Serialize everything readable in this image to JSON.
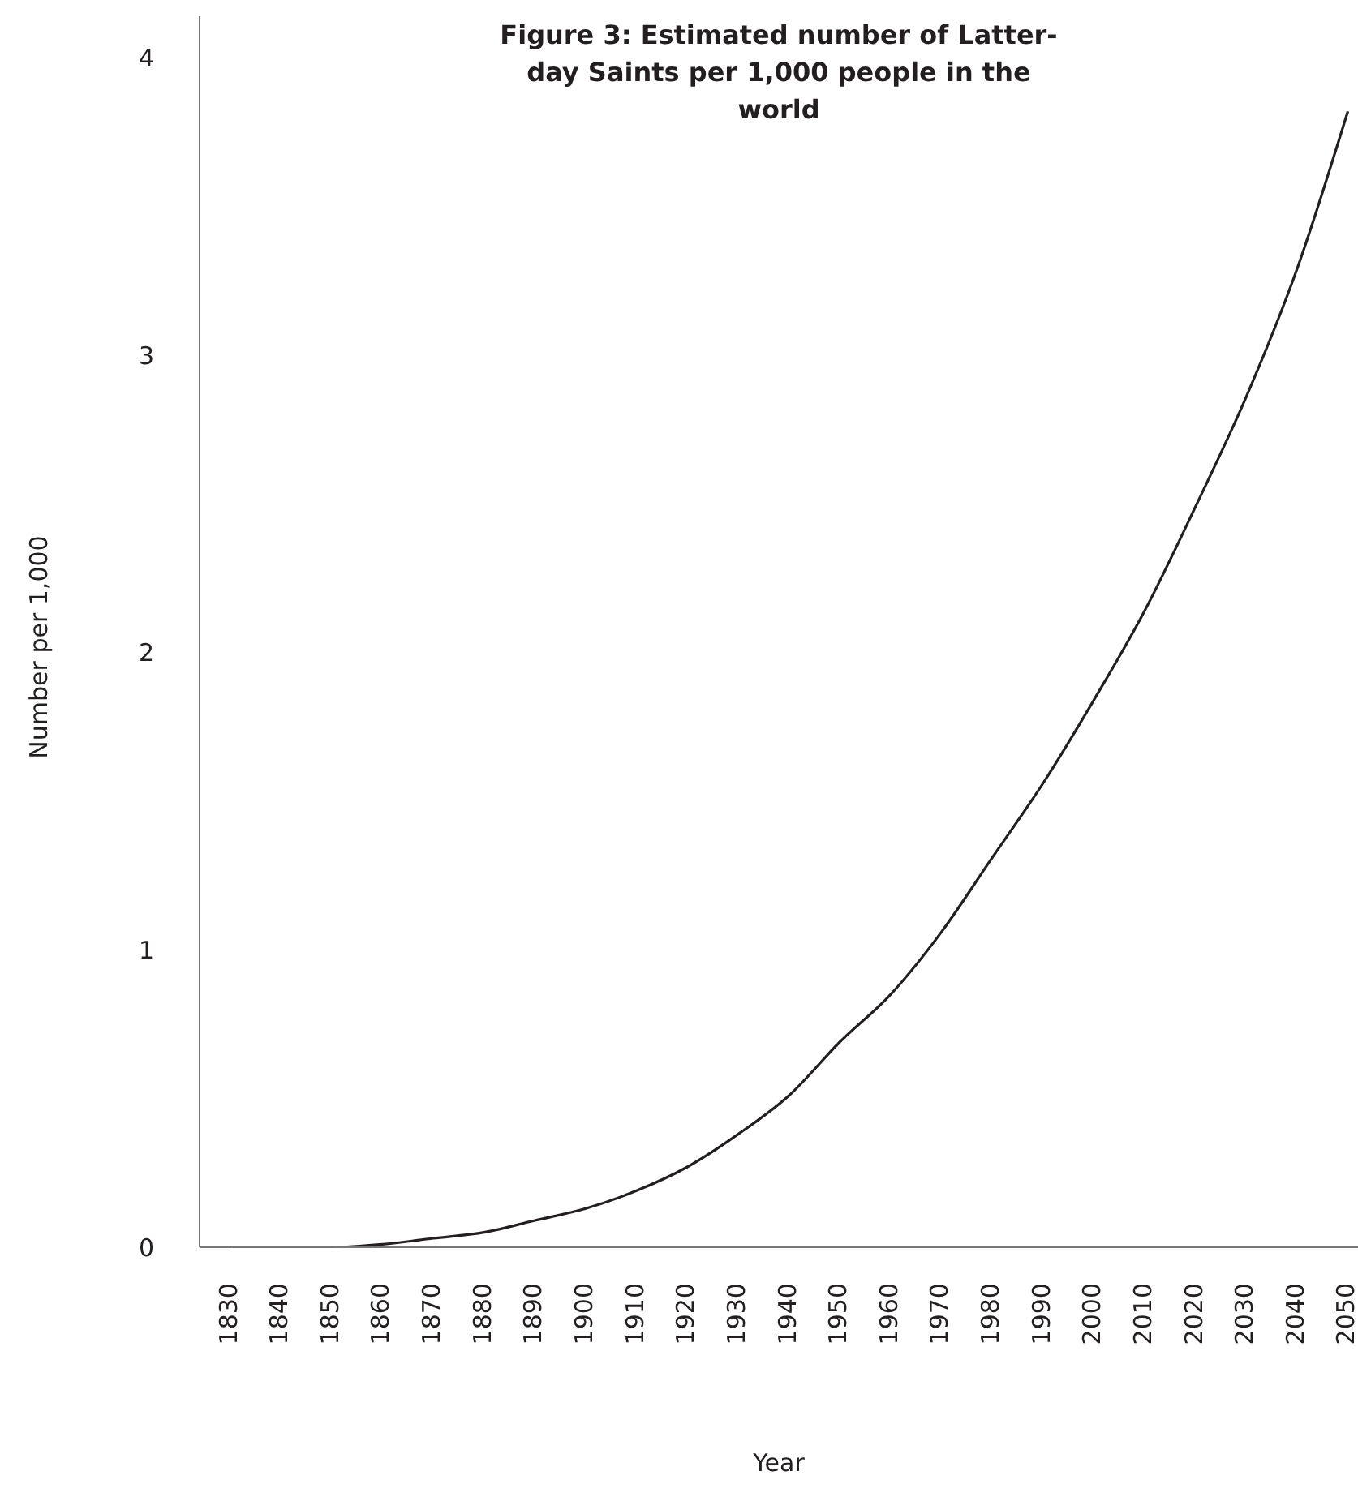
{
  "chart_data": {
    "type": "line",
    "title": "Figure 3: Estimated number of Latter-day Saints per 1,000 people in the world",
    "xlabel": "Year",
    "ylabel": "Number per 1,000",
    "x": [
      1830,
      1840,
      1850,
      1860,
      1870,
      1880,
      1890,
      1900,
      1910,
      1920,
      1930,
      1940,
      1950,
      1960,
      1970,
      1980,
      1990,
      2000,
      2010,
      2020,
      2030,
      2040,
      2050
    ],
    "series": [
      {
        "color": "#231f20",
        "values": [
          0,
          0,
          0,
          0.01,
          0.03,
          0.05,
          0.09,
          0.13,
          0.19,
          0.27,
          0.38,
          0.51,
          0.69,
          0.85,
          1.06,
          1.31,
          1.56,
          1.84,
          2.14,
          2.49,
          2.86,
          3.29,
          3.82
        ]
      }
    ],
    "xlim": [
      1824,
      2052
    ],
    "xticks": [
      1830,
      1840,
      1850,
      1860,
      1870,
      1880,
      1890,
      1900,
      1910,
      1920,
      1930,
      1940,
      1950,
      1960,
      1970,
      1980,
      1990,
      2000,
      2010,
      2020,
      2030,
      2040,
      2050
    ],
    "ylim": [
      0,
      4.14
    ],
    "yticks": [
      0,
      1,
      2,
      3,
      4
    ]
  }
}
